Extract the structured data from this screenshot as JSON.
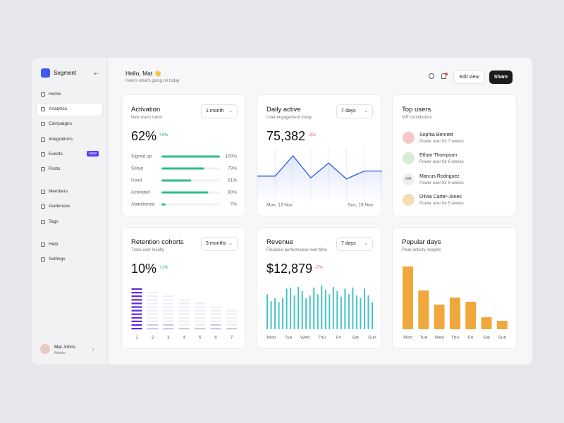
{
  "sidebar": {
    "brand": "Segment",
    "nav": [
      [
        {
          "label": "Home"
        },
        {
          "label": "Analytics",
          "active": true
        },
        {
          "label": "Campaigns"
        },
        {
          "label": "Integrations"
        },
        {
          "label": "Events",
          "badge": "New"
        },
        {
          "label": "Posts"
        }
      ],
      [
        {
          "label": "Members"
        },
        {
          "label": "Audiences"
        },
        {
          "label": "Tags"
        }
      ],
      [
        {
          "label": "Help"
        },
        {
          "label": "Settings"
        }
      ]
    ],
    "user": {
      "name": "Mat Johns",
      "role": "Admin"
    }
  },
  "header": {
    "greeting": "Hello, Mat 👋",
    "subtitle": "Here's what's going on today",
    "buttons": [
      "Edit view",
      "Share"
    ]
  },
  "cards": {
    "activation": {
      "title": "Activation",
      "subtitle": "New users trend",
      "dropdown": "1 month",
      "value": "62%",
      "change": "+5%",
      "rows": [
        {
          "label": "Signed up",
          "value": 100,
          "value_label": "100%"
        },
        {
          "label": "Setup",
          "value": 73,
          "value_label": "73%"
        },
        {
          "label": "Used",
          "value": 51,
          "value_label": "51%"
        },
        {
          "label": "Activated",
          "value": 80,
          "value_label": "80%"
        },
        {
          "label": "Abandoned",
          "value": 7,
          "value_label": "7%"
        }
      ],
      "color": "#2dbd8a"
    },
    "daily": {
      "title": "Daily active",
      "subtitle": "User engagement today",
      "dropdown": "7 days",
      "value": "75,382",
      "change": "-2%",
      "chart": {
        "type": "line",
        "values": [
          44,
          44,
          80,
          41,
          67,
          39,
          53,
          53
        ],
        "ylim": [
          0,
          100
        ],
        "color": "#2a5ae0",
        "x_start": "Mon, 13 Nov",
        "x_end": "Sun, 19 Nov"
      }
    },
    "top_users": {
      "title": "Top users",
      "subtitle": "VIP contributors",
      "users": [
        {
          "name": "Sophia Bennett",
          "desc": "Power user for 7 weeks"
        },
        {
          "name": "Ethan Thompson",
          "desc": "Power user for 6 weeks"
        },
        {
          "name": "Marcus Rodriguez",
          "desc": "Power user for 6 weeks",
          "initials": "MR"
        },
        {
          "name": "Olivia Carter-Jones",
          "desc": "Power user for 5 weeks"
        }
      ]
    },
    "retention": {
      "title": "Retention cohorts",
      "subtitle": "Track user loyalty",
      "dropdown": "3 months",
      "value": "10%",
      "change": "+1%",
      "chart": {
        "type": "stripes",
        "categories": [
          "1",
          "2",
          "3",
          "4",
          "5",
          "6",
          "7"
        ],
        "totals": [
          12,
          11,
          10,
          9,
          8,
          7,
          6
        ],
        "highlighted": [
          12,
          2,
          2,
          1,
          1,
          2,
          1
        ],
        "color": "#5b2be0"
      }
    },
    "revenue": {
      "title": "Revenue",
      "subtitle": "Financial performance over time",
      "dropdown": "7 days",
      "value": "$12,879",
      "change": "-7%",
      "chart": {
        "type": "bar",
        "categories": [
          "Mon",
          "Tue",
          "Wed",
          "Thu",
          "Fri",
          "Sat",
          "Sun"
        ],
        "values": [
          62,
          50,
          55,
          48,
          55,
          72,
          74,
          60,
          75,
          68,
          55,
          60,
          74,
          62,
          78,
          70,
          62,
          75,
          68,
          58,
          72,
          62,
          74,
          60,
          55,
          72,
          60,
          48
        ],
        "ylim": [
          0,
          100
        ],
        "color": "#45c3c8"
      }
    },
    "popular": {
      "title": "Popular days",
      "subtitle": "Peak activity insights",
      "chart": {
        "type": "bar",
        "categories": [
          "Mon",
          "Tue",
          "Wed",
          "Thu",
          "Fri",
          "Sat",
          "Sun"
        ],
        "values": [
          89,
          55,
          35,
          45,
          39,
          17,
          12
        ],
        "ylim": [
          0,
          100
        ],
        "color": "#f0a83c"
      }
    }
  }
}
